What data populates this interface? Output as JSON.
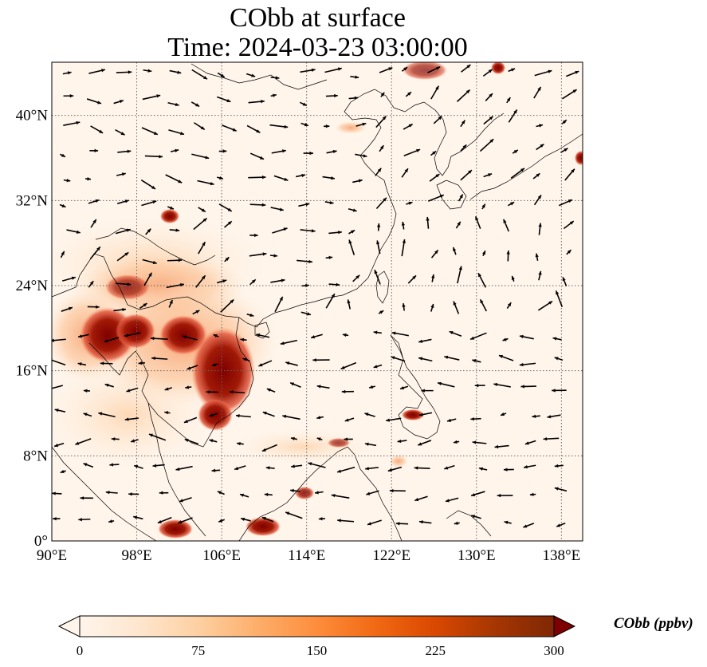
{
  "title_line1": "CObb at surface",
  "title_line2": "Time: 2024-03-23 03:00:00",
  "x_ticks": [
    "90°E",
    "98°E",
    "106°E",
    "114°E",
    "122°E",
    "130°E",
    "138°E"
  ],
  "y_ticks": [
    "0°",
    "8°N",
    "16°N",
    "24°N",
    "32°N",
    "40°N"
  ],
  "colorbar": {
    "label": "CObb (ppbv)",
    "ticks": [
      "0",
      "75",
      "150",
      "225",
      "300"
    ],
    "extend": "both",
    "colormap": [
      "#fff5eb",
      "#fee6ce",
      "#fdd0a2",
      "#fdae6b",
      "#fd8d3c",
      "#f16913",
      "#d94801",
      "#a63603",
      "#7f2704"
    ]
  },
  "map": {
    "lon_range": [
      90,
      140
    ],
    "lat_range": [
      0,
      45
    ],
    "gridlines": "dotted",
    "coastline_color": "#000000",
    "vector_color": "#000000"
  }
}
